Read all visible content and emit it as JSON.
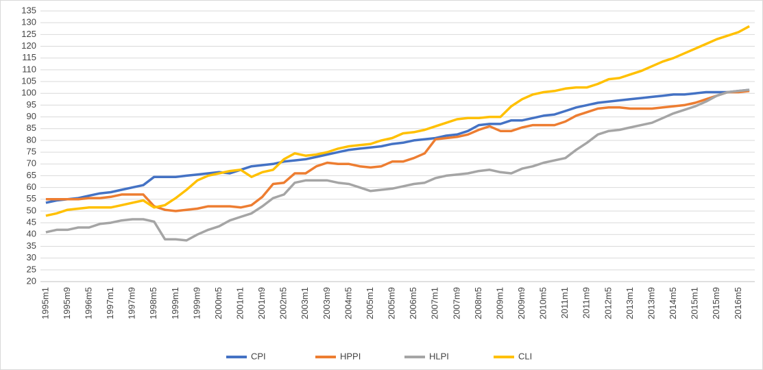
{
  "chart_data": {
    "type": "line",
    "categories": [
      "1995m1",
      null,
      "1995m9",
      null,
      "1996m5",
      null,
      "1997m1",
      null,
      "1997m9",
      null,
      "1998m5",
      null,
      "1999m1",
      null,
      "1999m9",
      null,
      "2000m5",
      null,
      "2001m1",
      null,
      "2001m9",
      null,
      "2002m5",
      null,
      "2003m1",
      null,
      "2003m9",
      null,
      "2004m5",
      null,
      "2005m1",
      null,
      "2005m9",
      null,
      "2006m5",
      null,
      "2007m1",
      null,
      "2007m9",
      null,
      "2008m5",
      null,
      "2009m1",
      null,
      "2009m9",
      null,
      "2010m5",
      null,
      "2011m1",
      null,
      "2011m9",
      null,
      "2012m5",
      null,
      "2013m1",
      null,
      "2013m9",
      null,
      "2014m5",
      null,
      "2015m1",
      null,
      "2015m9",
      null,
      "2016m5",
      null
    ],
    "series": [
      {
        "name": "CPI",
        "color": "#4472c4",
        "values": [
          53.5,
          54.5,
          55,
          55.5,
          56.5,
          57.5,
          58,
          59,
          60,
          61,
          64.5,
          64.5,
          64.5,
          65,
          65.5,
          66,
          66.5,
          66,
          67.5,
          69,
          69.5,
          70,
          71,
          71.5,
          72,
          73,
          74,
          75,
          76,
          76.5,
          77,
          77.5,
          78.5,
          79,
          80,
          80.5,
          81,
          82,
          82.5,
          84,
          86.5,
          87,
          87,
          88.5,
          88.5,
          89.5,
          90.5,
          91,
          92.5,
          94,
          95,
          96,
          96.5,
          97,
          97.5,
          98,
          98.5,
          99,
          99.5,
          99.5,
          100,
          100.5,
          100.5,
          100.5,
          101,
          101.5
        ]
      },
      {
        "name": "HPPI",
        "color": "#ed7d31",
        "values": [
          55,
          55,
          55,
          55,
          55.5,
          55.5,
          56,
          57,
          57,
          57,
          52,
          50.5,
          50,
          50.5,
          51,
          52,
          52,
          52,
          51.5,
          52.5,
          56,
          61.5,
          62,
          66,
          66,
          69,
          70.5,
          70,
          70,
          69,
          68.5,
          69,
          71,
          71,
          72.5,
          74.5,
          80.5,
          81,
          81.5,
          82.5,
          84.5,
          86,
          84,
          84,
          85.5,
          86.5,
          86.5,
          86.5,
          88,
          90.5,
          92,
          93.5,
          94,
          94,
          93.5,
          93.5,
          93.5,
          94,
          94.5,
          95,
          96,
          97.5,
          99,
          100.5,
          100.5,
          101
        ]
      },
      {
        "name": "HLPI",
        "color": "#a5a5a5",
        "values": [
          41,
          42,
          42,
          43,
          43,
          44.5,
          45,
          46,
          46.5,
          46.5,
          45.5,
          38,
          38,
          37.5,
          40,
          42,
          43.5,
          46,
          47.5,
          49,
          52,
          55.5,
          57,
          62,
          63,
          63,
          63,
          62,
          61.5,
          60,
          58.5,
          59,
          59.5,
          60.5,
          61.5,
          62,
          64,
          65,
          65.5,
          66,
          67,
          67.5,
          66.5,
          66,
          68,
          69,
          70.5,
          71.5,
          72.5,
          76,
          79,
          82.5,
          84,
          84.5,
          85.5,
          86.5,
          87.5,
          89.5,
          91.5,
          93,
          94.5,
          96.5,
          99,
          100.5,
          101,
          101.5
        ]
      },
      {
        "name": "CLI",
        "color": "#ffc000",
        "values": [
          48,
          49,
          50.5,
          51,
          51.5,
          51.5,
          51.5,
          52.5,
          53.5,
          54.5,
          51.5,
          52.5,
          55.5,
          59,
          63,
          65,
          66,
          67,
          67.5,
          64.5,
          66.5,
          67.5,
          72,
          74.5,
          73.5,
          74,
          75,
          76.5,
          77.5,
          78,
          78.5,
          80,
          81,
          83,
          83.5,
          84.5,
          86,
          87.5,
          89,
          89.5,
          89.5,
          90,
          90,
          94.5,
          97.5,
          99.5,
          100.5,
          101,
          102,
          102.5,
          102.5,
          104,
          106,
          106.5,
          108,
          109.5,
          111.5,
          113.5,
          115,
          117,
          119,
          121,
          123,
          124.5,
          126,
          128.5
        ]
      }
    ],
    "ylim": [
      20,
      135
    ],
    "yticks": [
      20,
      25,
      30,
      35,
      40,
      45,
      50,
      55,
      60,
      65,
      70,
      75,
      80,
      85,
      90,
      95,
      100,
      105,
      110,
      115,
      120,
      125,
      130,
      135
    ],
    "grid": true,
    "legend": "bottom"
  }
}
